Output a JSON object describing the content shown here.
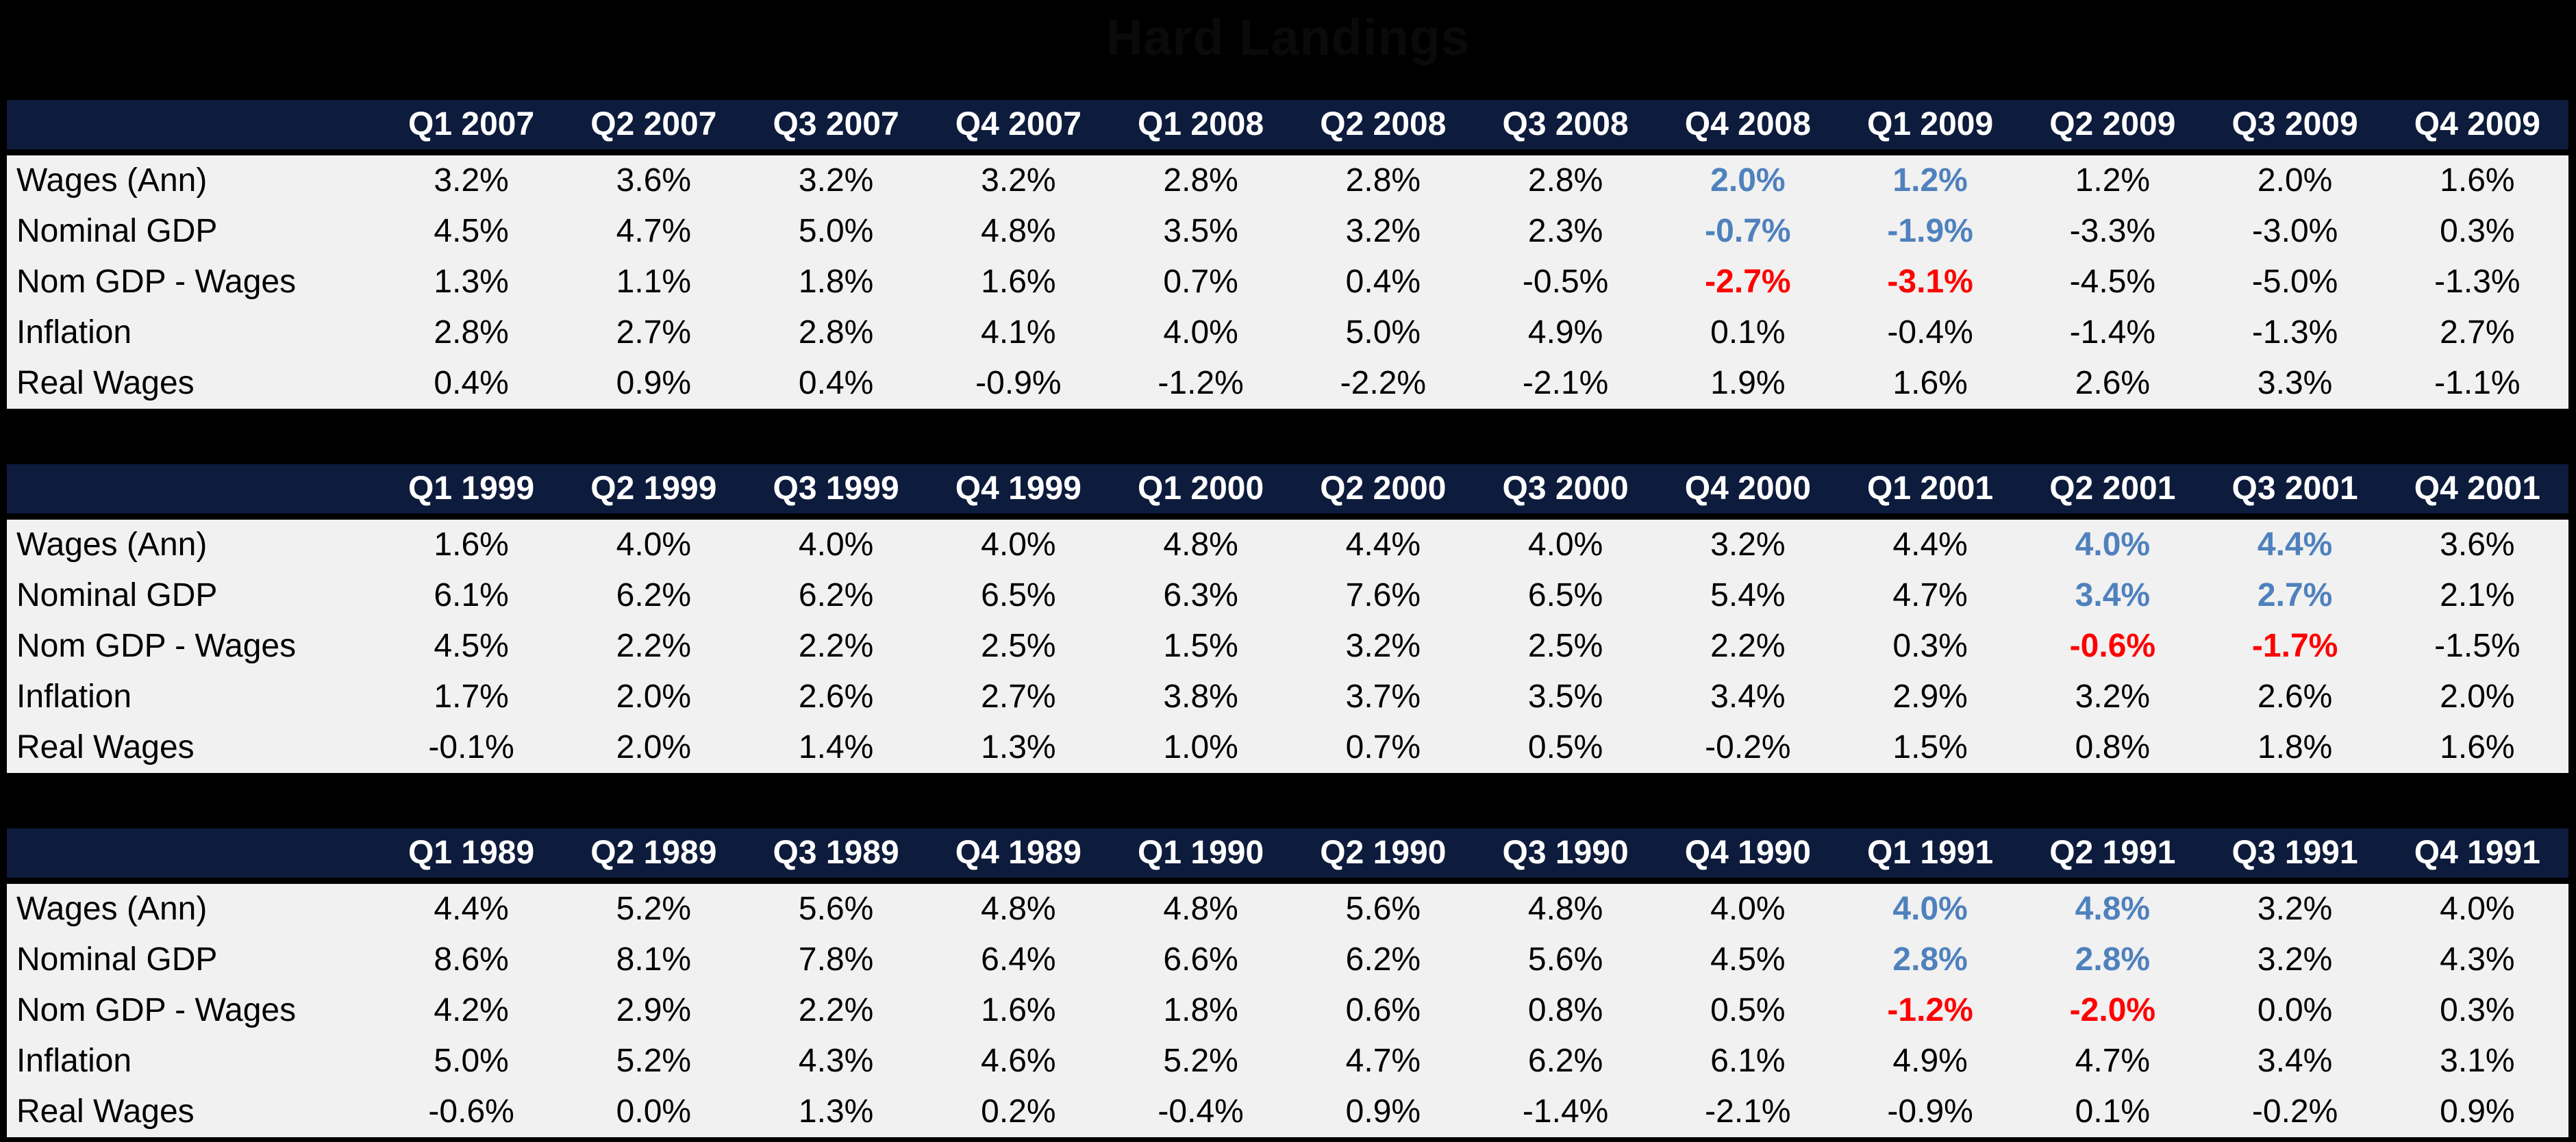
{
  "title": "Hard Landings",
  "colors": {
    "page_bg": "#000000",
    "header_bg": "#0d1b3c",
    "header_text": "#ffffff",
    "body_bg": "#f1f1f1",
    "body_text": "#000000",
    "highlight_blue": "#4f81bd",
    "highlight_red": "#ff0000"
  },
  "chart_data": [
    {
      "type": "table",
      "columns": [
        "Q1 2007",
        "Q2 2007",
        "Q3 2007",
        "Q4 2007",
        "Q1 2008",
        "Q2 2008",
        "Q3 2008",
        "Q4 2008",
        "Q1 2009",
        "Q2 2009",
        "Q3 2009",
        "Q4 2009"
      ],
      "rows": [
        {
          "label": "Wages (Ann)",
          "values": [
            "3.2%",
            "3.6%",
            "3.2%",
            "3.2%",
            "2.8%",
            "2.8%",
            "2.8%",
            "2.0%",
            "1.2%",
            "1.2%",
            "2.0%",
            "1.6%"
          ],
          "styles": [
            "",
            "",
            "",
            "",
            "",
            "",
            "",
            "blue",
            "blue",
            "",
            "",
            ""
          ]
        },
        {
          "label": "Nominal GDP",
          "values": [
            "4.5%",
            "4.7%",
            "5.0%",
            "4.8%",
            "3.5%",
            "3.2%",
            "2.3%",
            "-0.7%",
            "-1.9%",
            "-3.3%",
            "-3.0%",
            "0.3%"
          ],
          "styles": [
            "",
            "",
            "",
            "",
            "",
            "",
            "",
            "blue",
            "blue",
            "",
            "",
            ""
          ]
        },
        {
          "label": "Nom GDP - Wages",
          "values": [
            "1.3%",
            "1.1%",
            "1.8%",
            "1.6%",
            "0.7%",
            "0.4%",
            "-0.5%",
            "-2.7%",
            "-3.1%",
            "-4.5%",
            "-5.0%",
            "-1.3%"
          ],
          "styles": [
            "",
            "",
            "",
            "",
            "",
            "",
            "",
            "red",
            "red",
            "",
            "",
            ""
          ]
        },
        {
          "label": "Inflation",
          "values": [
            "2.8%",
            "2.7%",
            "2.8%",
            "4.1%",
            "4.0%",
            "5.0%",
            "4.9%",
            "0.1%",
            "-0.4%",
            "-1.4%",
            "-1.3%",
            "2.7%"
          ],
          "styles": [
            "",
            "",
            "",
            "",
            "",
            "",
            "",
            "",
            "",
            "",
            "",
            ""
          ]
        },
        {
          "label": "Real Wages",
          "values": [
            "0.4%",
            "0.9%",
            "0.4%",
            "-0.9%",
            "-1.2%",
            "-2.2%",
            "-2.1%",
            "1.9%",
            "1.6%",
            "2.6%",
            "3.3%",
            "-1.1%"
          ],
          "styles": [
            "",
            "",
            "",
            "",
            "",
            "",
            "",
            "",
            "",
            "",
            "",
            ""
          ]
        }
      ]
    },
    {
      "type": "table",
      "columns": [
        "Q1 1999",
        "Q2 1999",
        "Q3 1999",
        "Q4 1999",
        "Q1 2000",
        "Q2 2000",
        "Q3 2000",
        "Q4 2000",
        "Q1 2001",
        "Q2 2001",
        "Q3 2001",
        "Q4 2001"
      ],
      "rows": [
        {
          "label": "Wages (Ann)",
          "values": [
            "1.6%",
            "4.0%",
            "4.0%",
            "4.0%",
            "4.8%",
            "4.4%",
            "4.0%",
            "3.2%",
            "4.4%",
            "4.0%",
            "4.4%",
            "3.6%"
          ],
          "styles": [
            "",
            "",
            "",
            "",
            "",
            "",
            "",
            "",
            "",
            "blue",
            "blue",
            ""
          ]
        },
        {
          "label": "Nominal GDP",
          "values": [
            "6.1%",
            "6.2%",
            "6.2%",
            "6.5%",
            "6.3%",
            "7.6%",
            "6.5%",
            "5.4%",
            "4.7%",
            "3.4%",
            "2.7%",
            "2.1%"
          ],
          "styles": [
            "",
            "",
            "",
            "",
            "",
            "",
            "",
            "",
            "",
            "blue",
            "blue",
            ""
          ]
        },
        {
          "label": "Nom GDP - Wages",
          "values": [
            "4.5%",
            "2.2%",
            "2.2%",
            "2.5%",
            "1.5%",
            "3.2%",
            "2.5%",
            "2.2%",
            "0.3%",
            "-0.6%",
            "-1.7%",
            "-1.5%"
          ],
          "styles": [
            "",
            "",
            "",
            "",
            "",
            "",
            "",
            "",
            "",
            "red",
            "red",
            ""
          ]
        },
        {
          "label": "Inflation",
          "values": [
            "1.7%",
            "2.0%",
            "2.6%",
            "2.7%",
            "3.8%",
            "3.7%",
            "3.5%",
            "3.4%",
            "2.9%",
            "3.2%",
            "2.6%",
            "2.0%"
          ],
          "styles": [
            "",
            "",
            "",
            "",
            "",
            "",
            "",
            "",
            "",
            "",
            "",
            ""
          ]
        },
        {
          "label": "Real Wages",
          "values": [
            "-0.1%",
            "2.0%",
            "1.4%",
            "1.3%",
            "1.0%",
            "0.7%",
            "0.5%",
            "-0.2%",
            "1.5%",
            "0.8%",
            "1.8%",
            "1.6%"
          ],
          "styles": [
            "",
            "",
            "",
            "",
            "",
            "",
            "",
            "",
            "",
            "",
            "",
            ""
          ]
        }
      ]
    },
    {
      "type": "table",
      "columns": [
        "Q1 1989",
        "Q2 1989",
        "Q3 1989",
        "Q4 1989",
        "Q1 1990",
        "Q2 1990",
        "Q3 1990",
        "Q4 1990",
        "Q1 1991",
        "Q2 1991",
        "Q3 1991",
        "Q4 1991"
      ],
      "rows": [
        {
          "label": "Wages (Ann)",
          "values": [
            "4.4%",
            "5.2%",
            "5.6%",
            "4.8%",
            "4.8%",
            "5.6%",
            "4.8%",
            "4.0%",
            "4.0%",
            "4.8%",
            "3.2%",
            "4.0%"
          ],
          "styles": [
            "",
            "",
            "",
            "",
            "",
            "",
            "",
            "",
            "blue",
            "blue",
            "",
            ""
          ]
        },
        {
          "label": "Nominal GDP",
          "values": [
            "8.6%",
            "8.1%",
            "7.8%",
            "6.4%",
            "6.6%",
            "6.2%",
            "5.6%",
            "4.5%",
            "2.8%",
            "2.8%",
            "3.2%",
            "4.3%"
          ],
          "styles": [
            "",
            "",
            "",
            "",
            "",
            "",
            "",
            "",
            "blue",
            "blue",
            "",
            ""
          ]
        },
        {
          "label": "Nom GDP - Wages",
          "values": [
            "4.2%",
            "2.9%",
            "2.2%",
            "1.6%",
            "1.8%",
            "0.6%",
            "0.8%",
            "0.5%",
            "-1.2%",
            "-2.0%",
            "0.0%",
            "0.3%"
          ],
          "styles": [
            "",
            "",
            "",
            "",
            "",
            "",
            "",
            "",
            "red",
            "red",
            "",
            ""
          ]
        },
        {
          "label": "Inflation",
          "values": [
            "5.0%",
            "5.2%",
            "4.3%",
            "4.6%",
            "5.2%",
            "4.7%",
            "6.2%",
            "6.1%",
            "4.9%",
            "4.7%",
            "3.4%",
            "3.1%"
          ],
          "styles": [
            "",
            "",
            "",
            "",
            "",
            "",
            "",
            "",
            "",
            "",
            "",
            ""
          ]
        },
        {
          "label": "Real Wages",
          "values": [
            "-0.6%",
            "0.0%",
            "1.3%",
            "0.2%",
            "-0.4%",
            "0.9%",
            "-1.4%",
            "-2.1%",
            "-0.9%",
            "0.1%",
            "-0.2%",
            "0.9%"
          ],
          "styles": [
            "",
            "",
            "",
            "",
            "",
            "",
            "",
            "",
            "",
            "",
            "",
            ""
          ]
        }
      ]
    }
  ]
}
